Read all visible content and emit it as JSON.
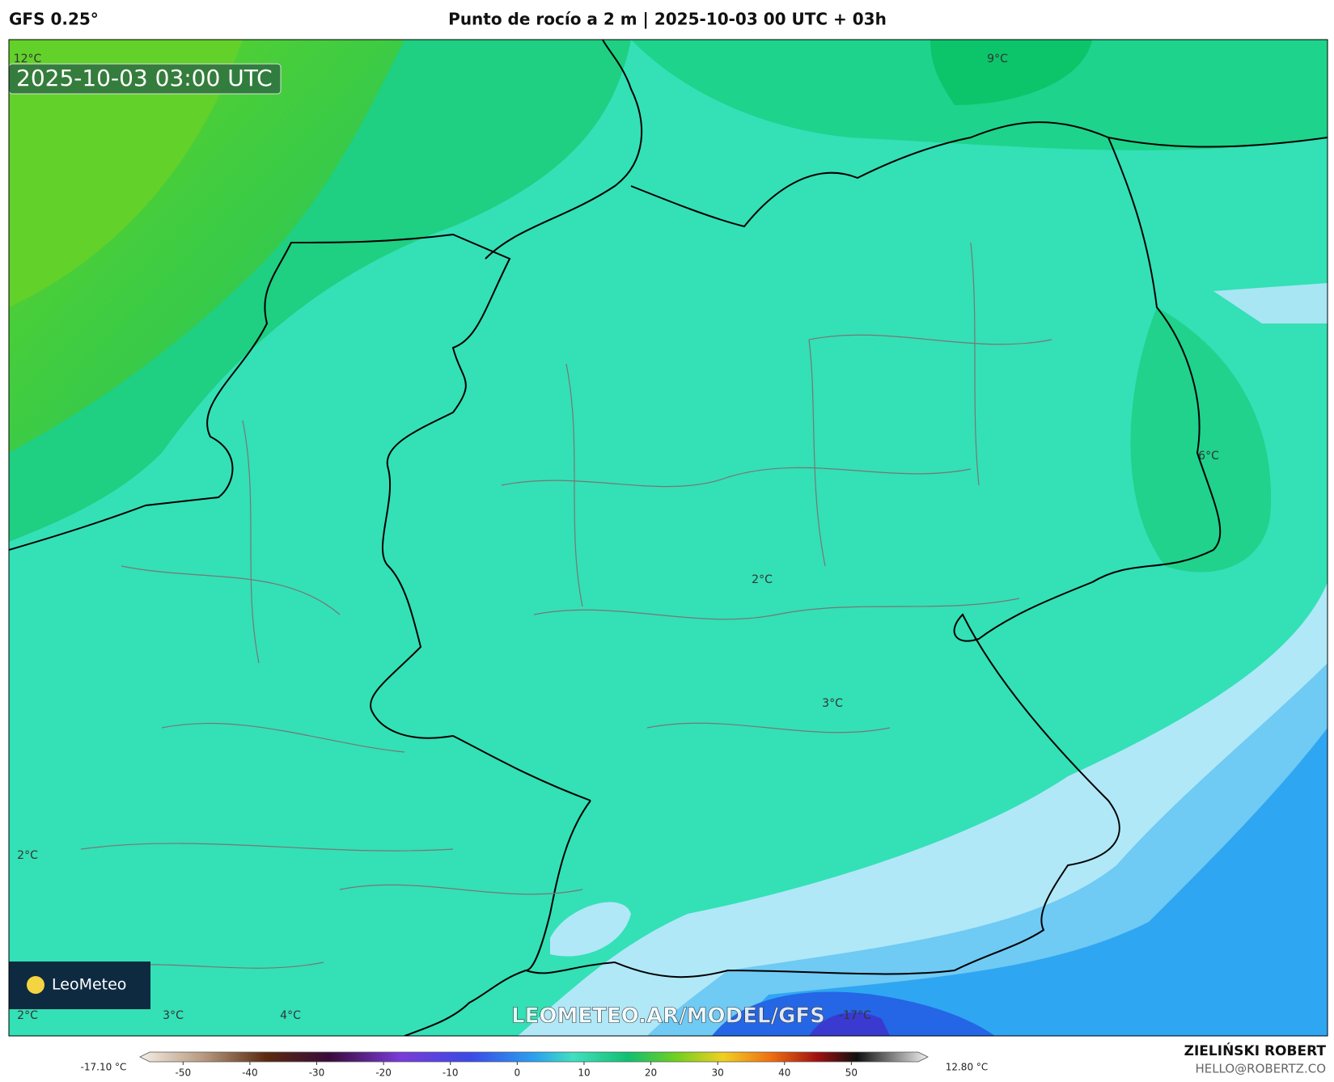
{
  "header": {
    "model": "GFS 0.25°",
    "title": "Punto de rocío a 2 m | 2025-10-03 00 UTC + 03h"
  },
  "map": {
    "timestamp": "2025-10-03 03:00 UTC",
    "watermark": "LEOMETEO.AR/MODEL/GFS",
    "logo": "LeoMeteo",
    "labels": [
      "12°C",
      "9°C",
      "6°C",
      "2°C",
      "3°C",
      "2°C",
      "2°C",
      "3°C",
      "4°C",
      "-17°C"
    ]
  },
  "colorbar": {
    "min_label": "-17.10 °C",
    "max_label": "12.80 °C",
    "range": [
      -55,
      60
    ],
    "ticks": [
      -50,
      -40,
      -30,
      -20,
      -10,
      0,
      10,
      20,
      30,
      40,
      50
    ]
  },
  "credits": {
    "name": "ZIELIŃSKI ROBERT",
    "email": "HELLO@ROBERTZ.CO"
  }
}
